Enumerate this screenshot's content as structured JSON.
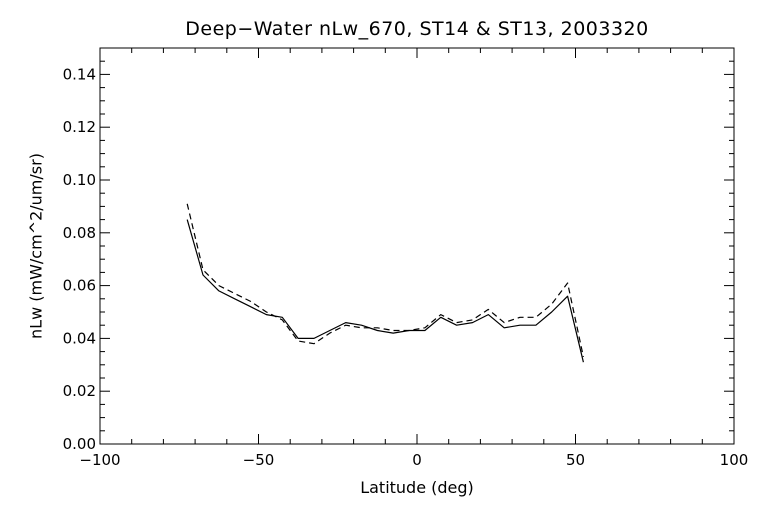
{
  "chart_data": {
    "type": "line",
    "title": "Deep−Water nLw_670, ST14 & ST13, 2003320",
    "xlabel": "Latitude (deg)",
    "ylabel": "nLw (mW/cm^2/um/sr)",
    "xlim": [
      -100,
      100
    ],
    "ylim": [
      0.0,
      0.15
    ],
    "xticks": [
      -100,
      -50,
      0,
      50,
      100
    ],
    "xtick_labels": [
      "−100",
      "−50",
      "0",
      "50",
      "100"
    ],
    "yticks": [
      0.0,
      0.02,
      0.04,
      0.06,
      0.08,
      0.1,
      0.12,
      0.14
    ],
    "ytick_labels": [
      "0.00",
      "0.02",
      "0.04",
      "0.06",
      "0.08",
      "0.10",
      "0.12",
      "0.14"
    ],
    "grid": false,
    "series": [
      {
        "style": "solid",
        "x": [
          -72.5,
          -67.5,
          -62.5,
          -57.5,
          -52.5,
          -47.5,
          -42.5,
          -37.5,
          -32.5,
          -27.5,
          -22.5,
          -17.5,
          -12.5,
          -7.5,
          -2.5,
          2.5,
          7.5,
          12.5,
          17.5,
          22.5,
          27.5,
          32.5,
          37.5,
          42.5,
          47.5,
          52.5
        ],
        "y": [
          0.085,
          0.064,
          0.058,
          0.055,
          0.052,
          0.049,
          0.048,
          0.04,
          0.04,
          0.043,
          0.046,
          0.045,
          0.043,
          0.042,
          0.043,
          0.043,
          0.048,
          0.045,
          0.046,
          0.049,
          0.044,
          0.045,
          0.045,
          0.05,
          0.056,
          0.031
        ]
      },
      {
        "style": "dashed",
        "x": [
          -72.5,
          -67.5,
          -62.5,
          -57.5,
          -52.5,
          -47.5,
          -42.5,
          -37.5,
          -32.5,
          -27.5,
          -22.5,
          -17.5,
          -12.5,
          -7.5,
          -2.5,
          2.5,
          7.5,
          12.5,
          17.5,
          22.5,
          27.5,
          32.5,
          37.5,
          42.5,
          47.5,
          52.5
        ],
        "y": [
          0.091,
          0.066,
          0.06,
          0.057,
          0.054,
          0.05,
          0.047,
          0.039,
          0.038,
          0.042,
          0.045,
          0.044,
          0.044,
          0.043,
          0.043,
          0.044,
          0.049,
          0.046,
          0.047,
          0.051,
          0.046,
          0.048,
          0.048,
          0.053,
          0.061,
          0.033
        ]
      }
    ]
  }
}
